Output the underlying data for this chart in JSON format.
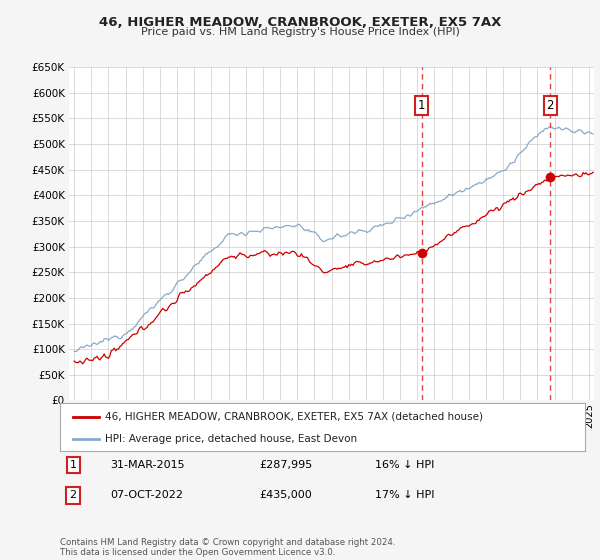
{
  "title": "46, HIGHER MEADOW, CRANBROOK, EXETER, EX5 7AX",
  "subtitle": "Price paid vs. HM Land Registry's House Price Index (HPI)",
  "ylim": [
    0,
    650000
  ],
  "yticks": [
    0,
    50000,
    100000,
    150000,
    200000,
    250000,
    300000,
    350000,
    400000,
    450000,
    500000,
    550000,
    600000,
    650000
  ],
  "xlim_start": 1994.7,
  "xlim_end": 2025.3,
  "red_line_color": "#cc0000",
  "blue_line_color": "#88aacc",
  "vline1_x": 2015.25,
  "vline2_x": 2022.75,
  "sale1_price_val": 287995,
  "sale2_price_val": 435000,
  "sale1_date": "31-MAR-2015",
  "sale1_price": "£287,995",
  "sale1_hpi": "16% ↓ HPI",
  "sale2_date": "07-OCT-2022",
  "sale2_price": "£435,000",
  "sale2_hpi": "17% ↓ HPI",
  "legend1": "46, HIGHER MEADOW, CRANBROOK, EXETER, EX5 7AX (detached house)",
  "legend2": "HPI: Average price, detached house, East Devon",
  "footnote": "Contains HM Land Registry data © Crown copyright and database right 2024.\nThis data is licensed under the Open Government Licence v3.0.",
  "background_color": "#f5f5f5",
  "plot_background": "#ffffff",
  "grid_color": "#cccccc"
}
